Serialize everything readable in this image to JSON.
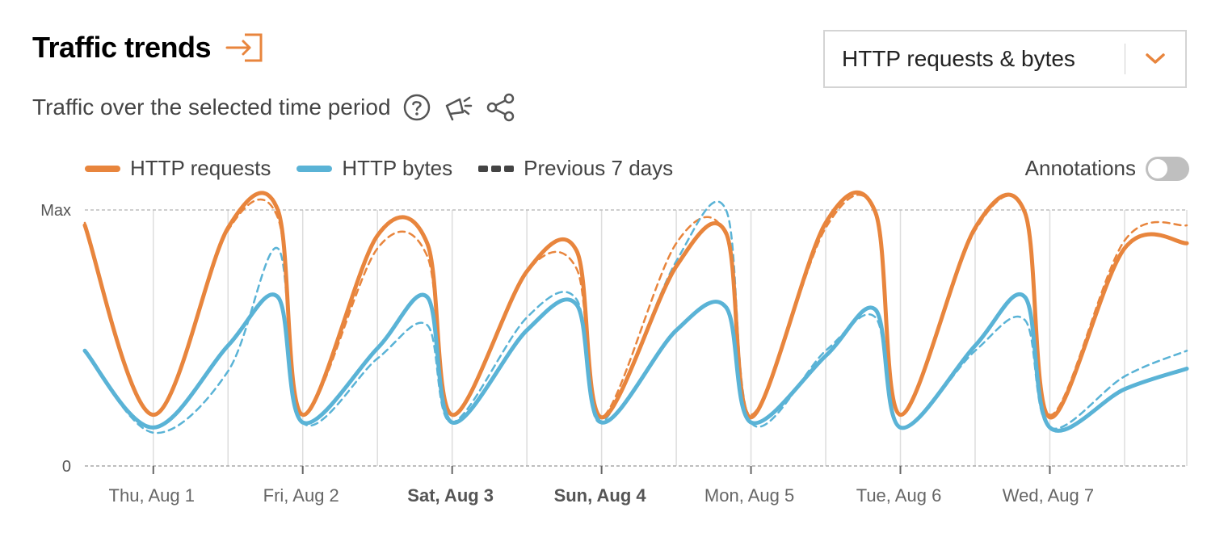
{
  "header": {
    "title": "Traffic trends",
    "subtitle": "Traffic over the selected time period"
  },
  "dropdown": {
    "value": "HTTP requests & bytes"
  },
  "legend": {
    "requests": "HTTP requests",
    "bytes": "HTTP bytes",
    "previous": "Previous 7 days"
  },
  "annotations": {
    "label": "Annotations",
    "enabled": false
  },
  "colors": {
    "accent": "#e8853d",
    "requests": "#e8853d",
    "bytes": "#5ab3d6",
    "grid": "#dcdcdc"
  },
  "chart_data": {
    "type": "line",
    "y_axis": {
      "ticks": [
        "Max",
        "0"
      ],
      "min": 0,
      "max": 100,
      "unit": "percent of max"
    },
    "x_axis": {
      "ticks": [
        {
          "label": "Thu, Aug 1",
          "bold": false
        },
        {
          "label": "Fri, Aug 2",
          "bold": false
        },
        {
          "label": "Sat, Aug 3",
          "bold": true
        },
        {
          "label": "Sun, Aug 4",
          "bold": true
        },
        {
          "label": "Mon, Aug 5",
          "bold": false
        },
        {
          "label": "Tue, Aug 6",
          "bold": false
        },
        {
          "label": "Wed, Aug 7",
          "bold": false
        }
      ]
    },
    "x_start": "2024-07-31T13:00",
    "x_end": "2024-08-07T22:00",
    "grid": true,
    "series": [
      {
        "name": "HTTP requests",
        "color": "#e8853d",
        "style": "solid",
        "points": [
          [
            "2024-07-31T13:00",
            94
          ],
          [
            "2024-08-01T00:00",
            20
          ],
          [
            "2024-08-01T12:00",
            93
          ],
          [
            "2024-08-01T20:00",
            100
          ],
          [
            "2024-08-02T00:00",
            20
          ],
          [
            "2024-08-02T12:00",
            90
          ],
          [
            "2024-08-02T20:00",
            87
          ],
          [
            "2024-08-03T00:00",
            20
          ],
          [
            "2024-08-03T12:00",
            76
          ],
          [
            "2024-08-03T20:00",
            84
          ],
          [
            "2024-08-04T00:00",
            19
          ],
          [
            "2024-08-04T12:00",
            78
          ],
          [
            "2024-08-04T20:00",
            91
          ],
          [
            "2024-08-05T00:00",
            19
          ],
          [
            "2024-08-05T12:00",
            95
          ],
          [
            "2024-08-05T20:00",
            99
          ],
          [
            "2024-08-06T00:00",
            20
          ],
          [
            "2024-08-06T12:00",
            93
          ],
          [
            "2024-08-06T20:00",
            99
          ],
          [
            "2024-08-07T00:00",
            19
          ],
          [
            "2024-08-07T12:00",
            85
          ],
          [
            "2024-08-07T22:00",
            87
          ]
        ]
      },
      {
        "name": "HTTP bytes",
        "color": "#5ab3d6",
        "style": "solid",
        "points": [
          [
            "2024-07-31T13:00",
            45
          ],
          [
            "2024-08-01T00:00",
            15
          ],
          [
            "2024-08-01T12:00",
            47
          ],
          [
            "2024-08-01T20:00",
            66
          ],
          [
            "2024-08-02T00:00",
            17
          ],
          [
            "2024-08-02T12:00",
            46
          ],
          [
            "2024-08-02T20:00",
            66
          ],
          [
            "2024-08-03T00:00",
            17
          ],
          [
            "2024-08-03T12:00",
            53
          ],
          [
            "2024-08-03T20:00",
            63
          ],
          [
            "2024-08-04T00:00",
            17
          ],
          [
            "2024-08-04T12:00",
            53
          ],
          [
            "2024-08-04T20:00",
            62
          ],
          [
            "2024-08-05T00:00",
            17
          ],
          [
            "2024-08-05T12:00",
            43
          ],
          [
            "2024-08-05T20:00",
            61
          ],
          [
            "2024-08-06T00:00",
            15
          ],
          [
            "2024-08-06T12:00",
            47
          ],
          [
            "2024-08-06T20:00",
            66
          ],
          [
            "2024-08-07T00:00",
            15
          ],
          [
            "2024-08-07T12:00",
            30
          ],
          [
            "2024-08-07T22:00",
            38
          ]
        ]
      },
      {
        "name": "Previous 7 days (HTTP requests)",
        "color": "#e8853d",
        "style": "dashed",
        "points": [
          [
            "2024-07-31T13:00",
            95
          ],
          [
            "2024-08-01T00:00",
            20
          ],
          [
            "2024-08-01T12:00",
            92
          ],
          [
            "2024-08-01T20:00",
            97
          ],
          [
            "2024-08-02T00:00",
            20
          ],
          [
            "2024-08-02T12:00",
            85
          ],
          [
            "2024-08-02T20:00",
            82
          ],
          [
            "2024-08-03T00:00",
            20
          ],
          [
            "2024-08-03T12:00",
            76
          ],
          [
            "2024-08-03T20:00",
            77
          ],
          [
            "2024-08-04T00:00",
            19
          ],
          [
            "2024-08-04T12:00",
            87
          ],
          [
            "2024-08-04T20:00",
            90
          ],
          [
            "2024-08-05T00:00",
            20
          ],
          [
            "2024-08-05T12:00",
            93
          ],
          [
            "2024-08-05T20:00",
            99
          ],
          [
            "2024-08-06T00:00",
            20
          ],
          [
            "2024-08-06T12:00",
            92
          ],
          [
            "2024-08-06T20:00",
            99
          ],
          [
            "2024-08-07T00:00",
            20
          ],
          [
            "2024-08-07T12:00",
            88
          ],
          [
            "2024-08-07T22:00",
            94
          ]
        ]
      },
      {
        "name": "Previous 7 days (HTTP bytes)",
        "color": "#5ab3d6",
        "style": "dashed",
        "points": [
          [
            "2024-07-31T13:00",
            45
          ],
          [
            "2024-08-01T00:00",
            13
          ],
          [
            "2024-08-01T12:00",
            37
          ],
          [
            "2024-08-01T20:00",
            85
          ],
          [
            "2024-08-02T00:00",
            17
          ],
          [
            "2024-08-02T12:00",
            42
          ],
          [
            "2024-08-02T20:00",
            55
          ],
          [
            "2024-08-03T00:00",
            17
          ],
          [
            "2024-08-03T12:00",
            58
          ],
          [
            "2024-08-03T20:00",
            65
          ],
          [
            "2024-08-04T00:00",
            17
          ],
          [
            "2024-08-04T12:00",
            80
          ],
          [
            "2024-08-04T20:00",
            100
          ],
          [
            "2024-08-05T00:00",
            17
          ],
          [
            "2024-08-05T12:00",
            45
          ],
          [
            "2024-08-05T20:00",
            58
          ],
          [
            "2024-08-06T00:00",
            15
          ],
          [
            "2024-08-06T12:00",
            45
          ],
          [
            "2024-08-06T20:00",
            57
          ],
          [
            "2024-08-07T00:00",
            15
          ],
          [
            "2024-08-07T12:00",
            35
          ],
          [
            "2024-08-07T22:00",
            45
          ]
        ]
      }
    ]
  }
}
